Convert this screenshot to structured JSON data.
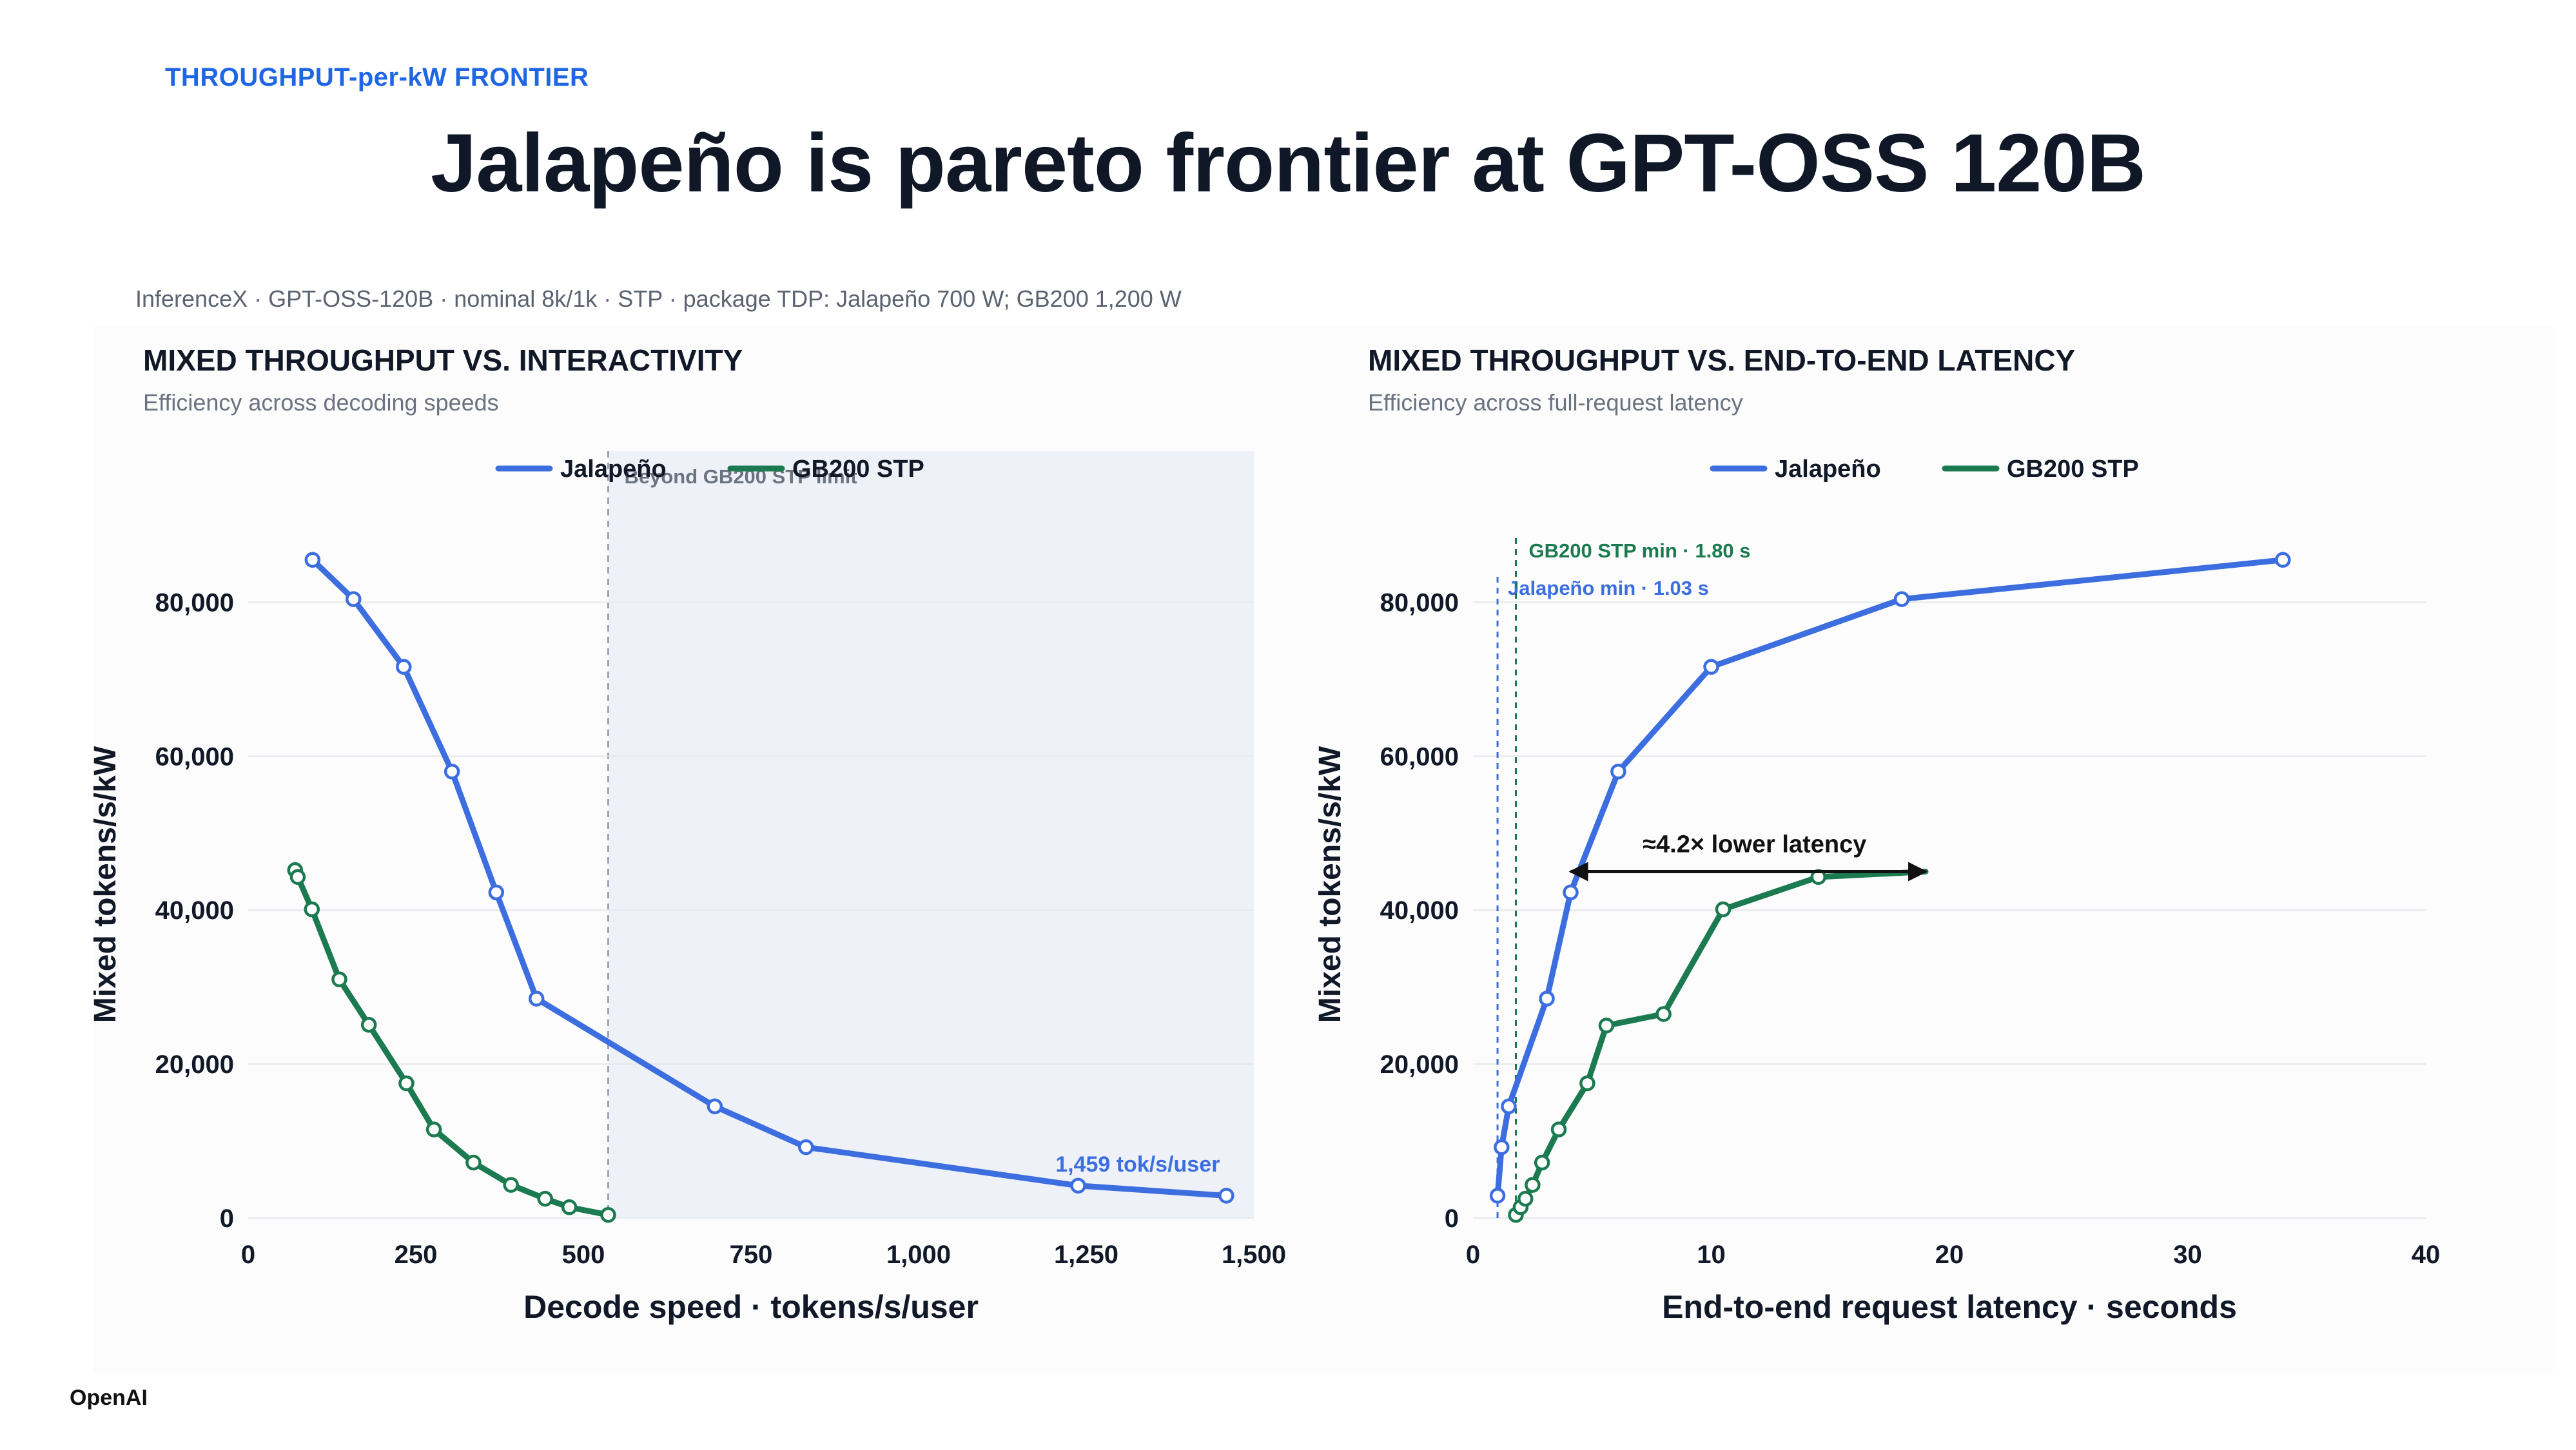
{
  "page": {
    "eyebrow": "THROUGHPUT-per-kW FRONTIER",
    "headline": "Jalapeño is pareto frontier at GPT-OSS 120B",
    "source_note": "InferenceX · GPT-OSS-120B · nominal 8k/1k · STP · package TDP: Jalapeño 700 W; GB200 1,200 W",
    "logo": "OpenAI"
  },
  "colors": {
    "jalapeno": "#3c6ee0",
    "gb200": "#1b7a4f",
    "accent": "#1f66e5",
    "shade": "#eef2f8"
  },
  "chart_data": [
    {
      "type": "line",
      "title": "MIXED THROUGHPUT VS. INTERACTIVITY",
      "subtitle": "Efficiency across decoding speeds",
      "xlabel": "Decode speed · tokens/s/user",
      "ylabel": "Mixed tokens/s/kW",
      "xlim": [
        0,
        1500
      ],
      "ylim": [
        0,
        90000
      ],
      "x_ticks": [
        0,
        250,
        500,
        750,
        1000,
        1250,
        1500
      ],
      "x_tick_labels": [
        "0",
        "250",
        "500",
        "750",
        "1,000",
        "1,250",
        "1,500"
      ],
      "y_ticks": [
        0,
        20000,
        40000,
        60000,
        80000
      ],
      "y_tick_labels": [
        "0",
        "20,000",
        "40,000",
        "60,000",
        "80,000"
      ],
      "grid": true,
      "legend_position": "top-center",
      "shaded_region": {
        "x_from": 537,
        "x_to": 1500,
        "label": "Beyond GB200 STP limit"
      },
      "annotations": [
        {
          "text": "1,459 tok/s/user",
          "x": 1459,
          "y": 4200
        }
      ],
      "series": [
        {
          "name": "Jalapeño",
          "color": "#3c6ee0",
          "points": [
            [
              96,
              85500
            ],
            [
              157,
              80400
            ],
            [
              232,
              71600
            ],
            [
              304,
              58000
            ],
            [
              370,
              42300
            ],
            [
              430,
              28500
            ],
            [
              696,
              14500
            ],
            [
              832,
              9200
            ],
            [
              1238,
              4200
            ],
            [
              1459,
              2900
            ]
          ],
          "markers": [
            true,
            true,
            true,
            true,
            true,
            true,
            true,
            true,
            true,
            true
          ]
        },
        {
          "name": "GB200 STP",
          "color": "#1b7a4f",
          "points": [
            [
              70,
              45200
            ],
            [
              74,
              44300
            ],
            [
              95,
              40100
            ],
            [
              136,
              31000
            ],
            [
              180,
              25100
            ],
            [
              236,
              17500
            ],
            [
              277,
              11500
            ],
            [
              336,
              7200
            ],
            [
              392,
              4300
            ],
            [
              443,
              2500
            ],
            [
              479,
              1400
            ],
            [
              537,
              400
            ]
          ],
          "markers": [
            true,
            true,
            true,
            true,
            true,
            true,
            true,
            true,
            true,
            true,
            true,
            true
          ]
        }
      ]
    },
    {
      "type": "line",
      "title": "MIXED THROUGHPUT VS. END-TO-END LATENCY",
      "subtitle": "Efficiency across full-request latency",
      "xlabel": "End-to-end request latency · seconds",
      "ylabel": "Mixed tokens/s/kW",
      "xlim": [
        0,
        40
      ],
      "ylim": [
        0,
        90000
      ],
      "x_ticks": [
        0,
        10,
        20,
        30,
        40
      ],
      "x_tick_labels": [
        "0",
        "10",
        "20",
        "30",
        "40"
      ],
      "y_ticks": [
        0,
        20000,
        40000,
        60000,
        80000
      ],
      "y_tick_labels": [
        "0",
        "20,000",
        "40,000",
        "60,000",
        "80,000"
      ],
      "grid": true,
      "legend_position": "top-center",
      "reference_lines": [
        {
          "x": 1.03,
          "label": "Jalapeño min · 1.03 s",
          "color": "#3c6ee0"
        },
        {
          "x": 1.8,
          "label": "GB200 STP min · 1.80 s",
          "color": "#1b7a4f"
        }
      ],
      "arrow": {
        "text": "≈4.2× lower latency",
        "x_from": 4.1,
        "x_to": 19.0,
        "y": 45000
      },
      "series": [
        {
          "name": "Jalapeño",
          "color": "#3c6ee0",
          "points": [
            [
              1.03,
              2900
            ],
            [
              1.2,
              9200
            ],
            [
              1.5,
              14500
            ],
            [
              3.1,
              28500
            ],
            [
              4.1,
              42300
            ],
            [
              6.1,
              58000
            ],
            [
              10.0,
              71600
            ],
            [
              18.0,
              80400
            ],
            [
              34.0,
              85500
            ]
          ],
          "markers": [
            true,
            true,
            true,
            true,
            true,
            true,
            true,
            true,
            true
          ]
        },
        {
          "name": "GB200 STP",
          "color": "#1b7a4f",
          "points": [
            [
              1.8,
              400
            ],
            [
              2.0,
              1400
            ],
            [
              2.2,
              2500
            ],
            [
              2.5,
              4300
            ],
            [
              2.9,
              7200
            ],
            [
              3.6,
              11500
            ],
            [
              4.8,
              17500
            ],
            [
              5.6,
              25000
            ],
            [
              8.0,
              26500
            ],
            [
              10.5,
              40100
            ],
            [
              14.5,
              44300
            ],
            [
              19.0,
              45000
            ]
          ],
          "markers": [
            true,
            true,
            true,
            true,
            true,
            true,
            true,
            true,
            true,
            true,
            true,
            false
          ]
        }
      ]
    }
  ]
}
